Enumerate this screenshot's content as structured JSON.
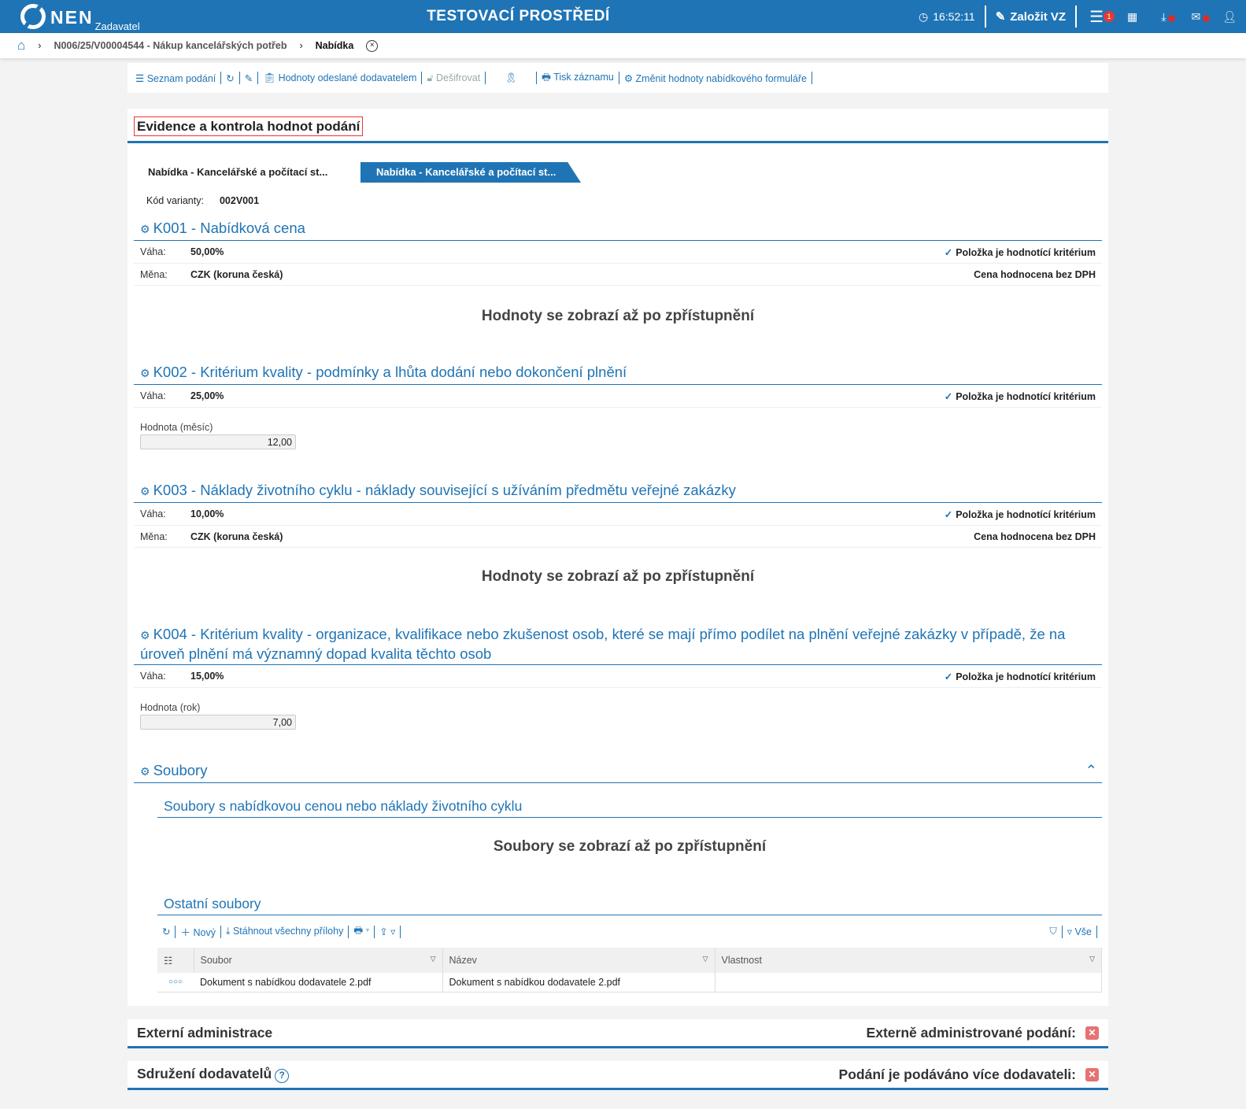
{
  "header": {
    "logo": "NEN",
    "role": "Zadavatel",
    "env_title": "TESTOVACÍ PROSTŘEDÍ",
    "time": "16:52:11",
    "create_label": "Založit VZ",
    "menu_badge": "1"
  },
  "breadcrumb": {
    "items": [
      "N006/25/V00004544 - Nákup kancelářských potřeb",
      "Nabídka"
    ]
  },
  "toolbar": {
    "list": "Seznam podání",
    "values_sent": "Hodnoty odeslané dodavatelem",
    "decrypt": "Dešifrovat",
    "print": "Tisk záznamu",
    "change": "Změnit hodnoty nabídkového formuláře"
  },
  "main": {
    "title": "Evidence a kontrola hodnot podání",
    "tabs": [
      "Nabídka - Kancelářské a počítací st...",
      "Nabídka - Kancelářské a počítací st..."
    ],
    "variant_label": "Kód varianty:",
    "variant_value": "002V001",
    "labels": {
      "weight": "Váha:",
      "currency": "Měna:",
      "criterion": "Položka je hodnotící kritérium",
      "no_vat": "Cena hodnocena bez DPH",
      "hidden": "Hodnoty se zobrazí až po zpřístupnění"
    },
    "criteria": [
      {
        "title": "K001 - Nabídková cena",
        "weight": "50,00%",
        "currency": "CZK (koruna česká)"
      },
      {
        "title": "K002 - Kritérium kvality - podmínky a lhůta dodání nebo dokončení plnění",
        "weight": "25,00%",
        "field_label": "Hodnota (měsíc)",
        "field_value": "12,00"
      },
      {
        "title": "K003 - Náklady životního cyklu - náklady související s užíváním předmětu veřejné zakázky",
        "weight": "10,00%",
        "currency": "CZK (koruna česká)"
      },
      {
        "title": "K004 - Kritérium kvality - organizace, kvalifikace nebo zkušenost osob, které se mají přímo podílet na plnění veřejné zakázky v případě, že na úroveň plnění má významný dopad kvalita těchto osob",
        "weight": "15,00%",
        "field_label": "Hodnota (rok)",
        "field_value": "7,00"
      }
    ],
    "files": {
      "title": "Soubory",
      "price_files": "Soubory s nabídkovou cenou nebo náklady životního cyklu",
      "files_hidden": "Soubory se zobrazí až po zpřístupnění",
      "other": "Ostatní soubory",
      "new": "Nový",
      "download_all": "Stáhnout všechny přílohy",
      "filter_all": "Vše",
      "columns": [
        "Soubor",
        "Název",
        "Vlastnost"
      ],
      "rows": [
        {
          "file": "Dokument s nabídkou dodavatele 2.pdf",
          "name": "Dokument s nabídkou dodavatele 2.pdf",
          "property": ""
        }
      ]
    }
  },
  "external": {
    "title": "Externí administrace",
    "label": "Externě administrované podání:"
  },
  "joint": {
    "title": "Sdružení dodavatelů",
    "label": "Podání je podáváno více dodavateli:"
  }
}
